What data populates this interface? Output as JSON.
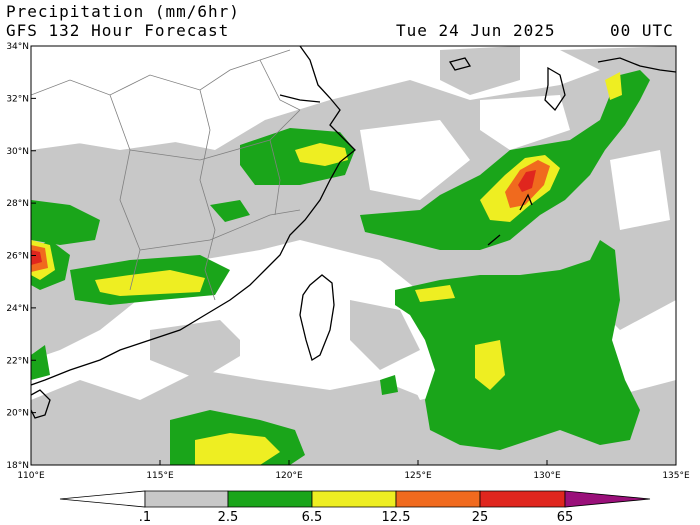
{
  "header": {
    "title_line1": "Precipitation (mm/6hr)",
    "title_line2": "GFS 132 Hour Forecast",
    "date": "Tue 24 Jun 2025",
    "time": "00 UTC"
  },
  "map": {
    "lon_ticks": [
      "110°E",
      "115°E",
      "120°E",
      "125°E",
      "130°E",
      "135°E"
    ],
    "lat_ticks": [
      "34°N",
      "32°N",
      "30°N",
      "28°N",
      "26°N",
      "24°N",
      "22°N",
      "20°N",
      "18°N"
    ],
    "lon_range": [
      110,
      135
    ],
    "lat_range": [
      18,
      34
    ]
  },
  "legend": {
    "labels": [
      ".1",
      "2.5",
      "6.5",
      "12.5",
      "25",
      "65"
    ],
    "colors": [
      "#ffffff",
      "#c8c8c8",
      "#1aa51a",
      "#eeee22",
      "#f06a1e",
      "#e0261e",
      "#9a107a"
    ]
  },
  "colors": {
    "light": "#c8c8c8",
    "green": "#1aa51a",
    "yellow": "#eeee22",
    "orange": "#f06a1e",
    "red": "#e0261e",
    "purple": "#9a107a"
  }
}
